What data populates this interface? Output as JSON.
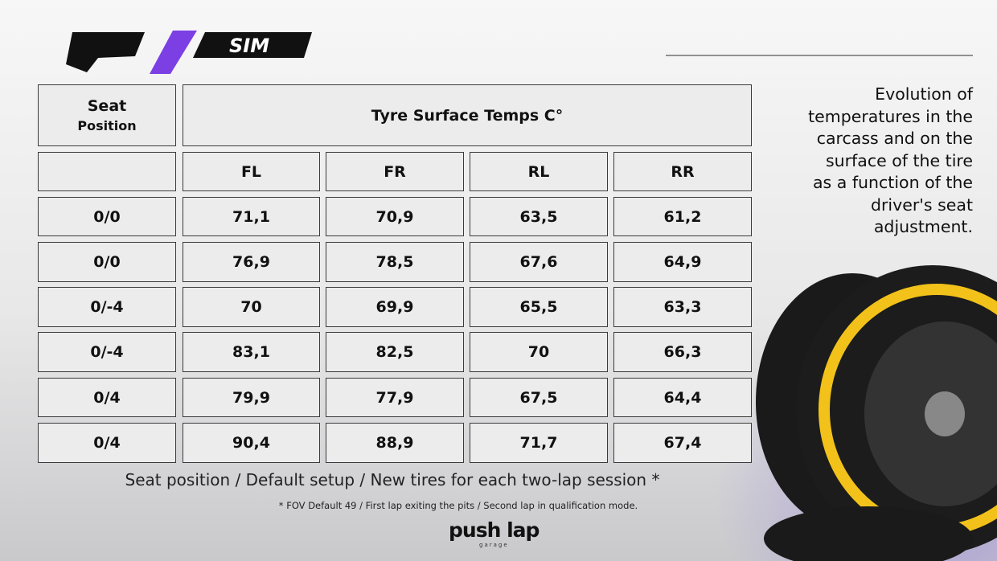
{
  "logo": {
    "text": "SIM"
  },
  "table": {
    "seat_header": [
      "Seat",
      "Position"
    ],
    "group_header": "Tyre Surface Temps C°",
    "columns": [
      "FL",
      "FR",
      "RL",
      "RR"
    ],
    "rows": [
      [
        "0/0",
        "71,1",
        "70,9",
        "63,5",
        "61,2"
      ],
      [
        "0/0",
        "76,9",
        "78,5",
        "67,6",
        "64,9"
      ],
      [
        "0/-4",
        "70",
        "69,9",
        "65,5",
        "63,3"
      ],
      [
        "0/-4",
        "83,1",
        "82,5",
        "70",
        "66,3"
      ],
      [
        "0/4",
        "79,9",
        "77,9",
        "67,5",
        "64,4"
      ],
      [
        "0/4",
        "90,4",
        "88,9",
        "71,7",
        "67,4"
      ]
    ]
  },
  "side_text": [
    "Evolution of",
    "temperatures in the",
    "carcass and on the",
    "surface of the tire",
    "as a function of the",
    "driver's seat",
    "adjustment."
  ],
  "caption": "Seat position / Default setup / New tires for each two-lap session *",
  "footnote": "* FOV Default 49 / First lap exiting the pits / Second lap in qualification mode.",
  "brand": {
    "name": "push lap",
    "sub": "garage"
  }
}
